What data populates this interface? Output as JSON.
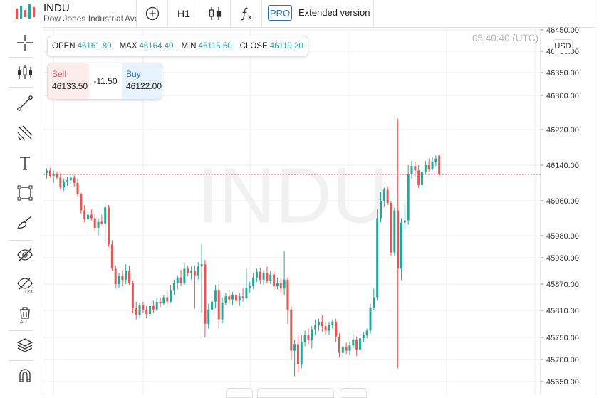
{
  "header": {
    "symbol": "INDU",
    "description": "Dow Jones Industrial Average",
    "timeframe": "H1",
    "pro_badge": "PRO",
    "extended_label": "Extended version"
  },
  "toolbar_icons": [
    "crosshair-icon",
    "candles-icon",
    "trendline-icon",
    "fib-icon",
    "text-icon",
    "rectangle-icon",
    "brush-icon",
    "hide-drawings-icon",
    "hide-123-icon",
    "delete-all-icon",
    "layers-icon",
    "magnet-icon"
  ],
  "ohlc": {
    "open_label": "OPEN",
    "open": "46161.80",
    "max_label": "MAX",
    "max": "46164.40",
    "min_label": "MIN",
    "min": "46115.50",
    "close_label": "CLOSE",
    "close": "46119.20"
  },
  "trade": {
    "sell_label": "Sell",
    "sell_price": "46133.50",
    "spread": "-11.50",
    "buy_label": "Buy",
    "buy_price": "46122.00"
  },
  "time": "05:40:40 (UTC)",
  "currency": "USD",
  "colors": {
    "up": "#26a69a",
    "down": "#ef5350",
    "price_line": "#ef5350",
    "accent": "#2a72b5",
    "watermark": "#f1f1f1"
  },
  "chart_data": {
    "type": "candlestick",
    "watermark": "INDU",
    "y_ticks": [
      "46450.00",
      "46400.00",
      "46350.00",
      "46300.00",
      "46220.00",
      "46140.00",
      "46060.00",
      "45980.00",
      "45930.00",
      "45870.00",
      "45810.00",
      "45750.00",
      "45700.00",
      "45650.00"
    ],
    "ylim": [
      45640,
      46450
    ],
    "current_price": 46119.2,
    "grid": true,
    "candles": [
      {
        "o": 46122,
        "h": 46133,
        "l": 46110,
        "c": 46128
      },
      {
        "o": 46128,
        "h": 46134,
        "l": 46112,
        "c": 46116
      },
      {
        "o": 46116,
        "h": 46128,
        "l": 46100,
        "c": 46120
      },
      {
        "o": 46120,
        "h": 46126,
        "l": 46108,
        "c": 46112
      },
      {
        "o": 46112,
        "h": 46122,
        "l": 46085,
        "c": 46090
      },
      {
        "o": 46090,
        "h": 46110,
        "l": 46082,
        "c": 46102
      },
      {
        "o": 46102,
        "h": 46114,
        "l": 46094,
        "c": 46106
      },
      {
        "o": 46106,
        "h": 46118,
        "l": 46096,
        "c": 46112
      },
      {
        "o": 46112,
        "h": 46118,
        "l": 46092,
        "c": 46100
      },
      {
        "o": 46100,
        "h": 46110,
        "l": 46070,
        "c": 46075
      },
      {
        "o": 46075,
        "h": 46078,
        "l": 46030,
        "c": 46038
      },
      {
        "o": 46038,
        "h": 46050,
        "l": 46010,
        "c": 46018
      },
      {
        "o": 46018,
        "h": 46036,
        "l": 45990,
        "c": 46028
      },
      {
        "o": 46028,
        "h": 46040,
        "l": 46015,
        "c": 46020
      },
      {
        "o": 46020,
        "h": 46030,
        "l": 45990,
        "c": 45998
      },
      {
        "o": 45998,
        "h": 46020,
        "l": 45980,
        "c": 46012
      },
      {
        "o": 46012,
        "h": 46028,
        "l": 46005,
        "c": 46008
      },
      {
        "o": 46008,
        "h": 46056,
        "l": 45968,
        "c": 46045
      },
      {
        "o": 46045,
        "h": 46050,
        "l": 45955,
        "c": 45960
      },
      {
        "o": 45960,
        "h": 45970,
        "l": 45900,
        "c": 45905
      },
      {
        "o": 45905,
        "h": 45912,
        "l": 45860,
        "c": 45870
      },
      {
        "o": 45870,
        "h": 45895,
        "l": 45862,
        "c": 45888
      },
      {
        "o": 45888,
        "h": 45902,
        "l": 45865,
        "c": 45880
      },
      {
        "o": 45880,
        "h": 45915,
        "l": 45870,
        "c": 45900
      },
      {
        "o": 45900,
        "h": 45912,
        "l": 45868,
        "c": 45872
      },
      {
        "o": 45872,
        "h": 45878,
        "l": 45805,
        "c": 45815
      },
      {
        "o": 45815,
        "h": 45830,
        "l": 45790,
        "c": 45800
      },
      {
        "o": 45800,
        "h": 45828,
        "l": 45795,
        "c": 45822
      },
      {
        "o": 45822,
        "h": 45830,
        "l": 45804,
        "c": 45810
      },
      {
        "o": 45810,
        "h": 45820,
        "l": 45792,
        "c": 45802
      },
      {
        "o": 45802,
        "h": 45826,
        "l": 45800,
        "c": 45820
      },
      {
        "o": 45820,
        "h": 45832,
        "l": 45805,
        "c": 45812
      },
      {
        "o": 45812,
        "h": 45838,
        "l": 45808,
        "c": 45830
      },
      {
        "o": 45830,
        "h": 45840,
        "l": 45818,
        "c": 45826
      },
      {
        "o": 45826,
        "h": 45845,
        "l": 45822,
        "c": 45840
      },
      {
        "o": 45840,
        "h": 45852,
        "l": 45825,
        "c": 45830
      },
      {
        "o": 45830,
        "h": 45868,
        "l": 45828,
        "c": 45855
      },
      {
        "o": 45855,
        "h": 45880,
        "l": 45845,
        "c": 45872
      },
      {
        "o": 45872,
        "h": 45890,
        "l": 45858,
        "c": 45885
      },
      {
        "o": 45885,
        "h": 45902,
        "l": 45866,
        "c": 45872
      },
      {
        "o": 45872,
        "h": 45918,
        "l": 45868,
        "c": 45905
      },
      {
        "o": 45905,
        "h": 45912,
        "l": 45888,
        "c": 45895
      },
      {
        "o": 45895,
        "h": 45910,
        "l": 45880,
        "c": 45900
      },
      {
        "o": 45900,
        "h": 45912,
        "l": 45815,
        "c": 45890
      },
      {
        "o": 45890,
        "h": 45920,
        "l": 45880,
        "c": 45910
      },
      {
        "o": 45910,
        "h": 45960,
        "l": 45805,
        "c": 45915
      },
      {
        "o": 45915,
        "h": 45925,
        "l": 45750,
        "c": 45780
      },
      {
        "o": 45780,
        "h": 45825,
        "l": 45770,
        "c": 45812
      },
      {
        "o": 45812,
        "h": 45842,
        "l": 45800,
        "c": 45830
      },
      {
        "o": 45830,
        "h": 45868,
        "l": 45815,
        "c": 45855
      },
      {
        "o": 45855,
        "h": 45870,
        "l": 45770,
        "c": 45790
      },
      {
        "o": 45790,
        "h": 45840,
        "l": 45782,
        "c": 45828
      },
      {
        "o": 45828,
        "h": 45850,
        "l": 45822,
        "c": 45842
      },
      {
        "o": 45842,
        "h": 45855,
        "l": 45825,
        "c": 45835
      },
      {
        "o": 45835,
        "h": 45852,
        "l": 45822,
        "c": 45845
      },
      {
        "o": 45845,
        "h": 45858,
        "l": 45825,
        "c": 45832
      },
      {
        "o": 45832,
        "h": 45850,
        "l": 45820,
        "c": 45842
      },
      {
        "o": 45842,
        "h": 45860,
        "l": 45830,
        "c": 45838
      },
      {
        "o": 45838,
        "h": 45905,
        "l": 45835,
        "c": 45860
      },
      {
        "o": 45860,
        "h": 45875,
        "l": 45850,
        "c": 45865
      },
      {
        "o": 45865,
        "h": 45895,
        "l": 45858,
        "c": 45885
      },
      {
        "o": 45885,
        "h": 45905,
        "l": 45875,
        "c": 45898
      },
      {
        "o": 45898,
        "h": 45908,
        "l": 45870,
        "c": 45880
      },
      {
        "o": 45880,
        "h": 45902,
        "l": 45868,
        "c": 45895
      },
      {
        "o": 45895,
        "h": 45910,
        "l": 45872,
        "c": 45878
      },
      {
        "o": 45878,
        "h": 45900,
        "l": 45870,
        "c": 45892
      },
      {
        "o": 45892,
        "h": 45900,
        "l": 45858,
        "c": 45865
      },
      {
        "o": 45865,
        "h": 45885,
        "l": 45858,
        "c": 45872
      },
      {
        "o": 45872,
        "h": 45882,
        "l": 45850,
        "c": 45860
      },
      {
        "o": 45860,
        "h": 45945,
        "l": 45845,
        "c": 45880
      },
      {
        "o": 45880,
        "h": 45885,
        "l": 45780,
        "c": 45812
      },
      {
        "o": 45812,
        "h": 45820,
        "l": 45700,
        "c": 45720
      },
      {
        "o": 45720,
        "h": 45745,
        "l": 45662,
        "c": 45735
      },
      {
        "o": 45735,
        "h": 45755,
        "l": 45670,
        "c": 45690
      },
      {
        "o": 45690,
        "h": 45755,
        "l": 45680,
        "c": 45740
      },
      {
        "o": 45740,
        "h": 45765,
        "l": 45730,
        "c": 45755
      },
      {
        "o": 45755,
        "h": 45770,
        "l": 45735,
        "c": 45745
      },
      {
        "o": 45745,
        "h": 45775,
        "l": 45725,
        "c": 45768
      },
      {
        "o": 45768,
        "h": 45790,
        "l": 45755,
        "c": 45778
      },
      {
        "o": 45778,
        "h": 45792,
        "l": 45765,
        "c": 45785
      },
      {
        "o": 45785,
        "h": 45800,
        "l": 45762,
        "c": 45775
      },
      {
        "o": 45775,
        "h": 45785,
        "l": 45755,
        "c": 45765
      },
      {
        "o": 45765,
        "h": 45785,
        "l": 45755,
        "c": 45778
      },
      {
        "o": 45778,
        "h": 45790,
        "l": 45770,
        "c": 45785
      },
      {
        "o": 45785,
        "h": 45792,
        "l": 45740,
        "c": 45752
      },
      {
        "o": 45752,
        "h": 45760,
        "l": 45705,
        "c": 45715
      },
      {
        "o": 45715,
        "h": 45732,
        "l": 45705,
        "c": 45728
      },
      {
        "o": 45728,
        "h": 45738,
        "l": 45712,
        "c": 45720
      },
      {
        "o": 45720,
        "h": 45740,
        "l": 45710,
        "c": 45732
      },
      {
        "o": 45732,
        "h": 45758,
        "l": 45725,
        "c": 45745
      },
      {
        "o": 45745,
        "h": 45752,
        "l": 45708,
        "c": 45722
      },
      {
        "o": 45722,
        "h": 45752,
        "l": 45715,
        "c": 45748
      },
      {
        "o": 45748,
        "h": 45762,
        "l": 45740,
        "c": 45755
      },
      {
        "o": 45755,
        "h": 45770,
        "l": 45748,
        "c": 45765
      },
      {
        "o": 45765,
        "h": 45825,
        "l": 45758,
        "c": 45815
      },
      {
        "o": 45815,
        "h": 45860,
        "l": 45810,
        "c": 45840
      },
      {
        "o": 45840,
        "h": 46040,
        "l": 45832,
        "c": 46020
      },
      {
        "o": 46020,
        "h": 46080,
        "l": 46010,
        "c": 46060
      },
      {
        "o": 46060,
        "h": 46090,
        "l": 46045,
        "c": 46085
      },
      {
        "o": 46085,
        "h": 46092,
        "l": 46050,
        "c": 46055
      },
      {
        "o": 46055,
        "h": 46060,
        "l": 45935,
        "c": 45942
      },
      {
        "o": 45942,
        "h": 46045,
        "l": 45935,
        "c": 46038
      },
      {
        "o": 46038,
        "h": 46245,
        "l": 45680,
        "c": 45905
      },
      {
        "o": 45905,
        "h": 46020,
        "l": 45880,
        "c": 46010
      },
      {
        "o": 46010,
        "h": 46055,
        "l": 45995,
        "c": 46015
      },
      {
        "o": 46015,
        "h": 46140,
        "l": 46005,
        "c": 46120
      },
      {
        "o": 46120,
        "h": 46150,
        "l": 46110,
        "c": 46138
      },
      {
        "o": 46138,
        "h": 46148,
        "l": 46115,
        "c": 46128
      },
      {
        "o": 46128,
        "h": 46140,
        "l": 46088,
        "c": 46095
      },
      {
        "o": 46095,
        "h": 46130,
        "l": 46090,
        "c": 46125
      },
      {
        "o": 46125,
        "h": 46150,
        "l": 46118,
        "c": 46140
      },
      {
        "o": 46140,
        "h": 46155,
        "l": 46125,
        "c": 46132
      },
      {
        "o": 46132,
        "h": 46158,
        "l": 46128,
        "c": 46148
      },
      {
        "o": 46148,
        "h": 46162,
        "l": 46138,
        "c": 46155
      },
      {
        "o": 46161.8,
        "h": 46164.4,
        "l": 46115.5,
        "c": 46119.2
      }
    ]
  }
}
